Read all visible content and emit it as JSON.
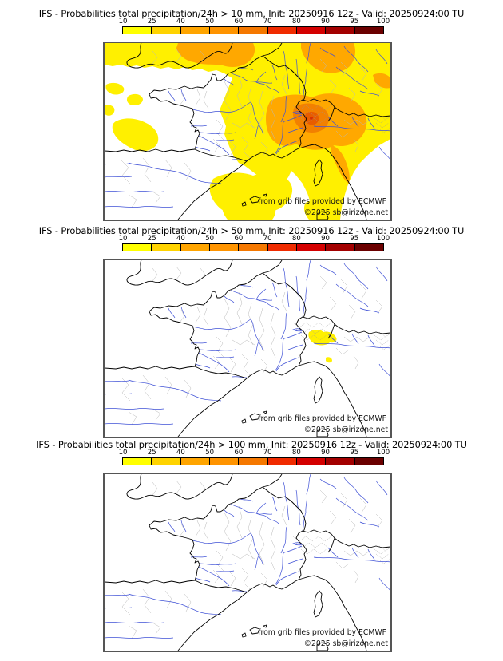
{
  "panels": [
    {
      "threshold": "10 mm",
      "title": "IFS - Probabilities total precipitation/24h > 10 mm, Init: 20250916 12z - Valid: 20250924:00 TU",
      "attribution": "from grib files provided by ECMWF",
      "copyright": "©2025 sb@irizone.net"
    },
    {
      "threshold": "50 mm",
      "title": "IFS - Probabilities total precipitation/24h > 50 mm, Init: 20250916 12z - Valid: 20250924:00 TU",
      "attribution": "from grib files provided by ECMWF",
      "copyright": "©2025 sb@irizone.net"
    },
    {
      "threshold": "100 mm",
      "title": "IFS - Probabilities total precipitation/24h > 100 mm, Init: 20250916 12z - Valid: 20250924:00 TU",
      "attribution": "from grib files provided by ECMWF",
      "copyright": "©2025 sb@irizone.net"
    }
  ],
  "colorbar": {
    "unit": "%",
    "tick_labels": [
      "10",
      "25",
      "40",
      "50",
      "60",
      "70",
      "80",
      "90",
      "95",
      "100"
    ],
    "segment_colors": [
      "#ffff00",
      "#ffd300",
      "#ffa500",
      "#ff9400",
      "#f57800",
      "#f02b00",
      "#d40000",
      "#a30000",
      "#6b0000"
    ]
  },
  "map_colors": {
    "river": "#3f51d6",
    "coastline": "#000000",
    "admin_border": "#b8b8b8",
    "frame": "#555555",
    "prob_low_yellow": "#fff000",
    "prob_mid_orange": "#ffa800",
    "prob_high_orange": "#f28000",
    "prob_core": "#e85c00"
  }
}
